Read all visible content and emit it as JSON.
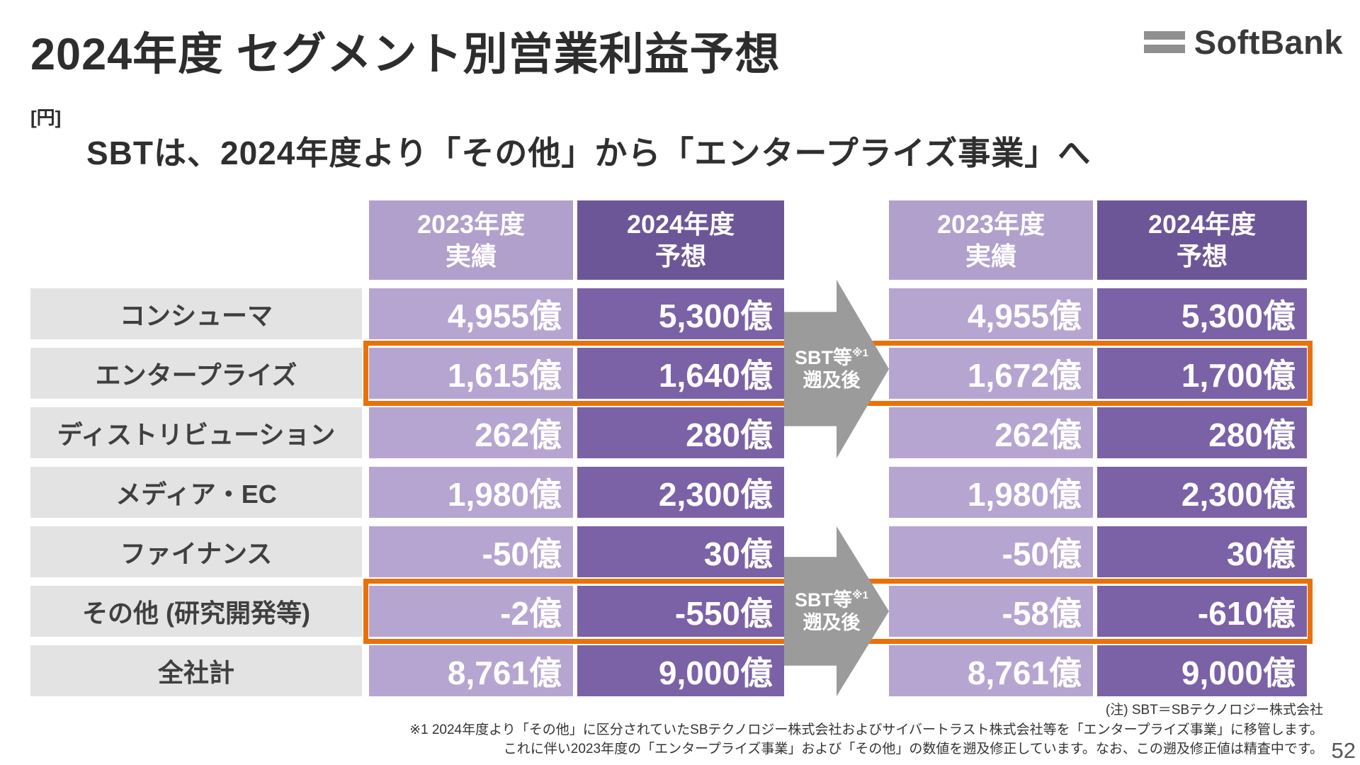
{
  "brand": {
    "name": "SoftBank"
  },
  "header": {
    "title": "2024年度 セグメント別営業利益予想",
    "unit": "[円]",
    "subtitle": "SBTは、2024年度より「その他」から「エンタープライズ事業」へ"
  },
  "arrow": {
    "line1": "SBT等",
    "sup": "※1",
    "line2": "遡及後"
  },
  "table": {
    "left_headers": [
      {
        "l1": "2023年度",
        "l2": "実績"
      },
      {
        "l1": "2024年度",
        "l2": "予想"
      }
    ],
    "right_headers": [
      {
        "l1": "2023年度",
        "l2": "実績"
      },
      {
        "l1": "2024年度",
        "l2": "予想"
      }
    ],
    "rows": [
      {
        "label": "コンシューマ",
        "l1": "4,955億",
        "l2": "5,300億",
        "r1": "4,955億",
        "r2": "5,300億"
      },
      {
        "label": "エンタープライズ",
        "l1": "1,615億",
        "l2": "1,640億",
        "r1": "1,672億",
        "r2": "1,700億"
      },
      {
        "label": "ディストリビューション",
        "l1": "262億",
        "l2": "280億",
        "r1": "262億",
        "r2": "280億"
      },
      {
        "label": "メディア・EC",
        "l1": "1,980億",
        "l2": "2,300億",
        "r1": "1,980億",
        "r2": "2,300億"
      },
      {
        "label": "ファイナンス",
        "l1": "-50億",
        "l2": "30億",
        "r1": "-50億",
        "r2": "30億"
      },
      {
        "label": "その他 (研究開発等)",
        "l1": "-2億",
        "l2": "-550億",
        "r1": "-58億",
        "r2": "-610億"
      },
      {
        "label": "全社計",
        "l1": "8,761億",
        "l2": "9,000億",
        "r1": "8,761億",
        "r2": "9,000億"
      }
    ]
  },
  "notes": {
    "note0": "(注) SBT＝SBテクノロジー株式会社",
    "note1": "※1 2024年度より「その他」に区分されていたSBテクノロジー株式会社およびサイバートラスト株式会社等を「エンタープライズ事業」に移管します。",
    "note2": "これに伴い2023年度の「エンタープライズ事業」および「その他」の数値を遡及修正しています。なお、この遡及修正値は精査中です。"
  },
  "footer": {
    "page_number": "52"
  },
  "colors": {
    "purple_light": "#b6a5d1",
    "purple_dark": "#7b61a6",
    "header_purple_light": "#b1a0cc",
    "header_purple_dark": "#6d5697",
    "row_label_gray": "#e3e3e3",
    "highlight_orange": "#e97108",
    "arrow_gray": "#9b9b9b"
  }
}
